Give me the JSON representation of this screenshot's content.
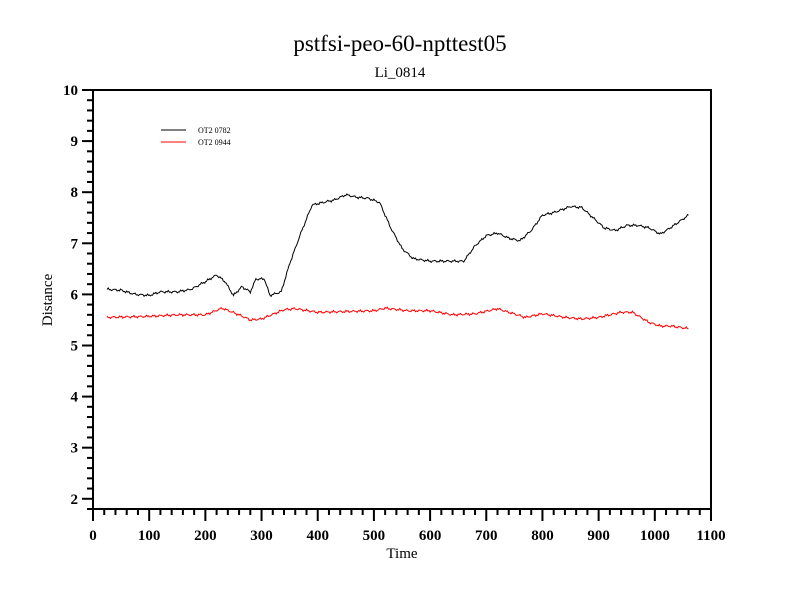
{
  "chart_data": {
    "type": "line",
    "title": "pstfsi-peo-60-npttest05",
    "subtitle": "Li_0814",
    "xlabel": "Time",
    "ylabel": "Distance",
    "xlim": [
      0,
      1100
    ],
    "ylim": [
      1.8,
      10
    ],
    "xticks": [
      0,
      100,
      200,
      300,
      400,
      500,
      600,
      700,
      800,
      900,
      1000,
      1100
    ],
    "yticks": [
      2,
      3,
      4,
      5,
      6,
      7,
      8,
      9,
      10
    ],
    "grid": false,
    "legend_position": "top-left",
    "series": [
      {
        "name": "OT2 0782",
        "color": "#000000",
        "x": [
          25,
          50,
          75,
          100,
          120,
          150,
          175,
          200,
          220,
          235,
          250,
          265,
          280,
          290,
          305,
          315,
          335,
          350,
          370,
          390,
          410,
          430,
          450,
          470,
          490,
          510,
          530,
          550,
          570,
          600,
          630,
          660,
          680,
          700,
          720,
          740,
          760,
          780,
          800,
          820,
          850,
          870,
          890,
          910,
          930,
          950,
          970,
          990,
          1010,
          1030,
          1060
        ],
        "y": [
          6.1,
          6.08,
          6.0,
          5.98,
          6.05,
          6.05,
          6.1,
          6.25,
          6.38,
          6.25,
          5.98,
          6.15,
          6.05,
          6.3,
          6.3,
          5.98,
          6.05,
          6.6,
          7.2,
          7.75,
          7.8,
          7.85,
          7.95,
          7.9,
          7.88,
          7.8,
          7.3,
          6.9,
          6.7,
          6.65,
          6.65,
          6.65,
          6.95,
          7.15,
          7.2,
          7.1,
          7.05,
          7.25,
          7.55,
          7.6,
          7.72,
          7.7,
          7.5,
          7.3,
          7.25,
          7.35,
          7.35,
          7.3,
          7.18,
          7.32,
          7.55
        ]
      },
      {
        "name": "OT2 0944",
        "color": "#ff0000",
        "x": [
          25,
          100,
          150,
          200,
          230,
          260,
          280,
          300,
          340,
          360,
          400,
          500,
          520,
          560,
          600,
          640,
          680,
          720,
          740,
          770,
          800,
          840,
          870,
          900,
          940,
          960,
          990,
          1010,
          1030,
          1060
        ],
        "y": [
          5.55,
          5.57,
          5.6,
          5.6,
          5.73,
          5.6,
          5.5,
          5.52,
          5.7,
          5.72,
          5.65,
          5.68,
          5.73,
          5.68,
          5.68,
          5.6,
          5.62,
          5.72,
          5.65,
          5.55,
          5.62,
          5.55,
          5.52,
          5.55,
          5.65,
          5.65,
          5.45,
          5.38,
          5.38,
          5.33
        ]
      }
    ]
  }
}
